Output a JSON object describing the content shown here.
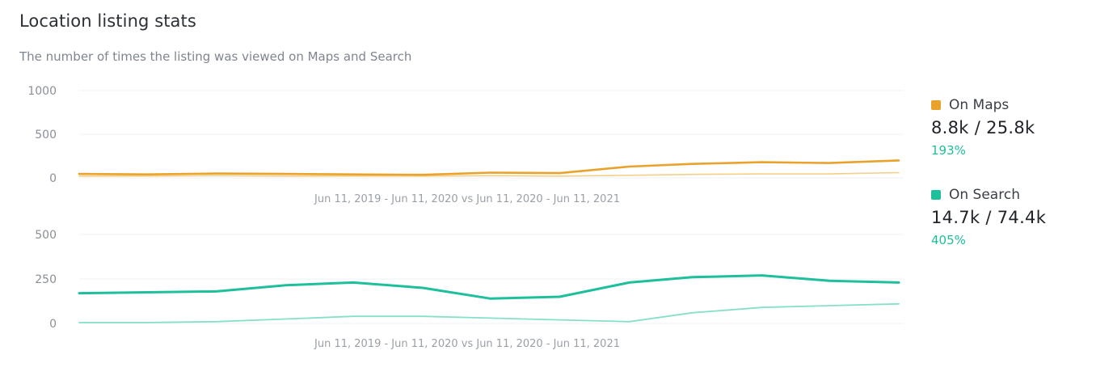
{
  "header": {
    "title": "Location listing stats",
    "subtitle": "The number of times the listing was viewed on Maps and Search"
  },
  "colors": {
    "maps": "#e9a22c",
    "maps_light": "#f5cf87",
    "search": "#1dc09b",
    "search_light": "#86e0c8",
    "positive": "#1dc09b"
  },
  "legend": [
    {
      "name": "On Maps",
      "value": "8.8k / 25.8k",
      "change": "193%"
    },
    {
      "name": "On Search",
      "value": "14.7k / 74.4k",
      "change": "405%"
    }
  ],
  "chart_data": [
    {
      "type": "line",
      "xlabel": "Jun 11, 2019 - Jun 11, 2020 vs Jun 11, 2020 - Jun 11, 2021",
      "ylim": [
        0,
        1000
      ],
      "yticks": [
        0,
        500,
        1000
      ],
      "grid": true,
      "x": [
        "2020-06-11",
        "2020-07-11",
        "2020-08-11",
        "2020-09-11",
        "2020-10-11",
        "2020-11-11",
        "2020-12-11",
        "2021-01-11",
        "2021-02-11",
        "2021-03-11",
        "2021-04-11",
        "2021-05-11",
        "2021-06-11"
      ],
      "series": [
        {
          "name": "On Maps",
          "values": [
            45,
            40,
            50,
            45,
            40,
            35,
            60,
            55,
            130,
            160,
            180,
            170,
            200
          ]
        },
        {
          "name": "",
          "values": [
            20,
            20,
            25,
            20,
            20,
            20,
            25,
            20,
            30,
            40,
            45,
            45,
            60
          ]
        }
      ]
    },
    {
      "type": "line",
      "xlabel": "Jun 11, 2019 - Jun 11, 2020 vs Jun 11, 2020 - Jun 11, 2021",
      "ylim": [
        0,
        500
      ],
      "yticks": [
        0,
        250,
        500
      ],
      "grid": true,
      "x": [
        "2020-06-11",
        "2020-07-11",
        "2020-08-11",
        "2020-09-11",
        "2020-10-11",
        "2020-11-11",
        "2020-12-11",
        "2021-01-11",
        "2021-02-11",
        "2021-03-11",
        "2021-04-11",
        "2021-05-11",
        "2021-06-11"
      ],
      "series": [
        {
          "name": "On Search",
          "values": [
            170,
            175,
            180,
            215,
            230,
            200,
            140,
            150,
            230,
            260,
            270,
            240,
            230
          ]
        },
        {
          "name": "",
          "values": [
            5,
            5,
            10,
            25,
            40,
            40,
            30,
            20,
            10,
            60,
            90,
            100,
            110
          ]
        }
      ]
    }
  ]
}
